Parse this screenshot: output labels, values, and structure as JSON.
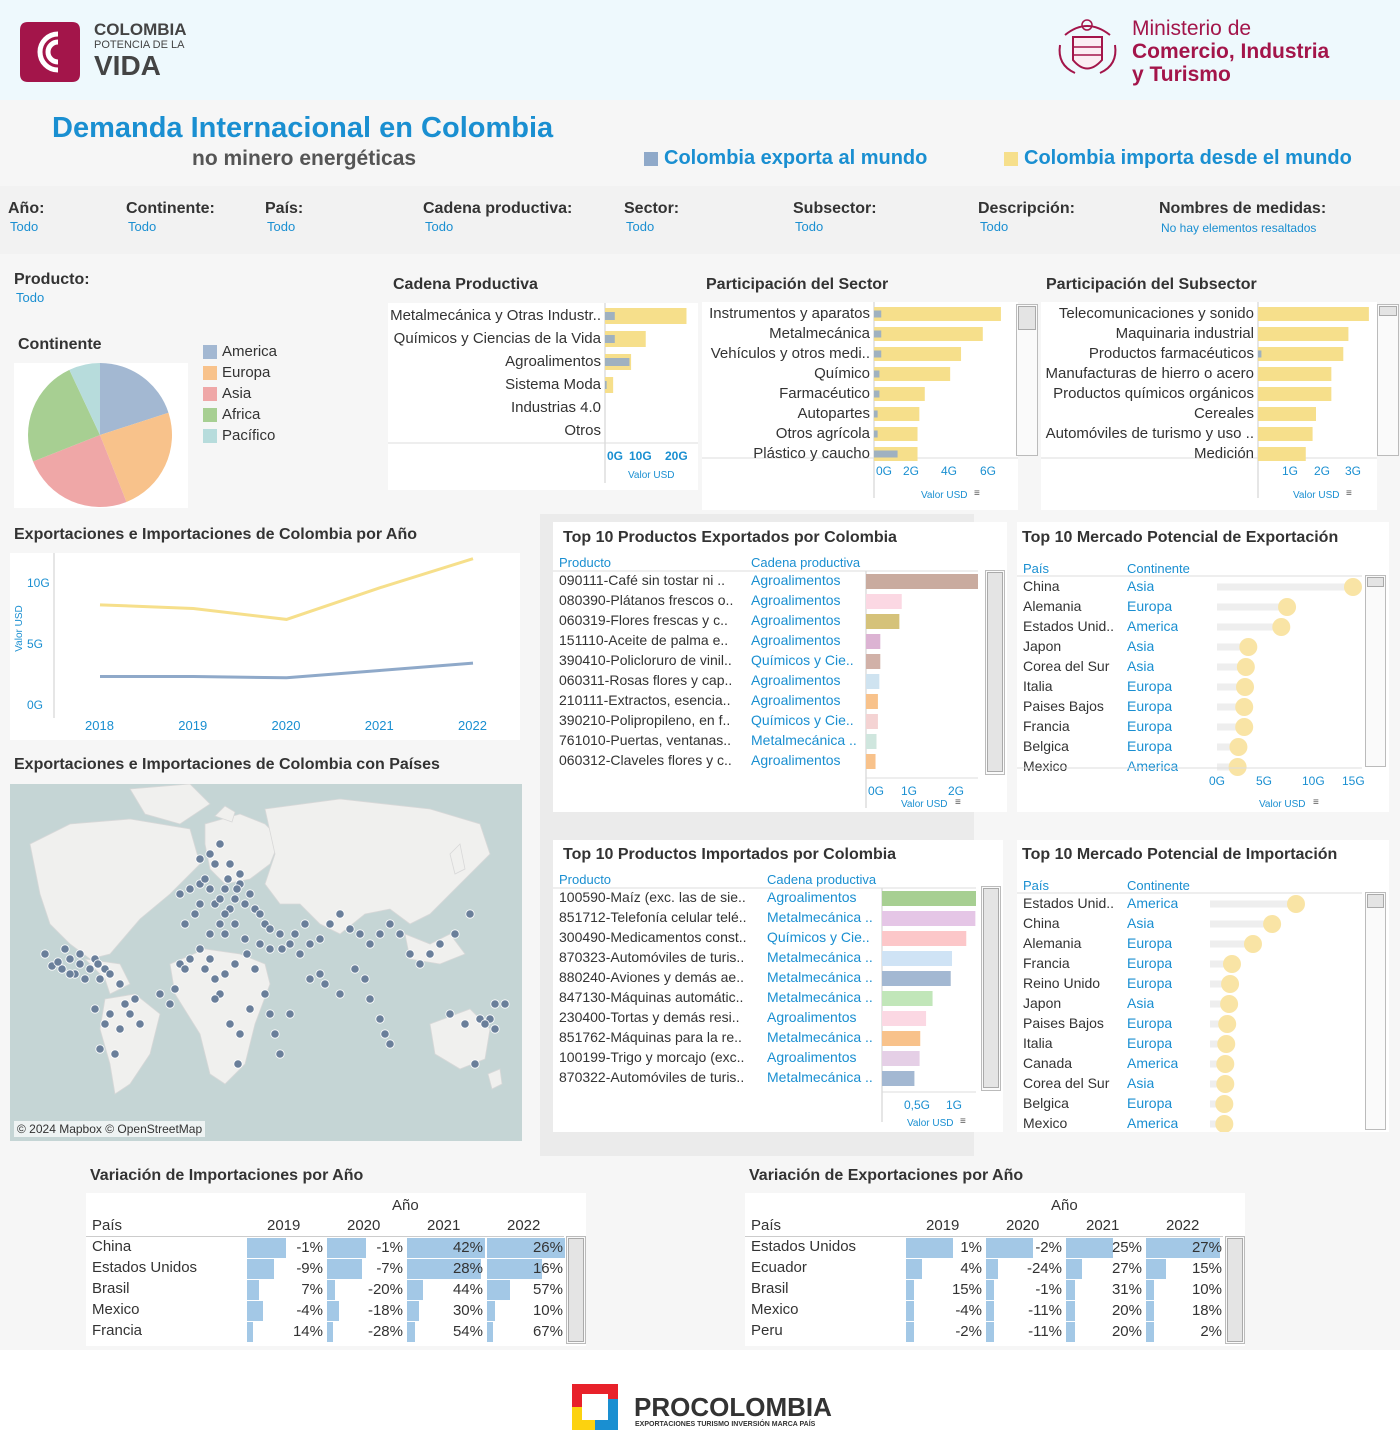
{
  "header": {
    "logo_left": {
      "line1": "COLOMBIA",
      "line2": "POTENCIA DE LA",
      "line3": "VIDA"
    },
    "logo_right": {
      "line1": "Ministerio de",
      "line2": "Comercio, Industria",
      "line3": "y Turismo"
    },
    "brand_color": "#a3154a"
  },
  "title": {
    "main": "Demanda Internacional en Colombia",
    "sub": "no minero energéticas",
    "legend_export": "Colombia exporta al mundo",
    "legend_import": "Colombia importa desde el mundo",
    "export_color": "#8fa9c9",
    "import_color": "#f6df8b"
  },
  "filters": [
    {
      "label": "Año:",
      "value": "Todo"
    },
    {
      "label": "Continente:",
      "value": "Todo"
    },
    {
      "label": "País:",
      "value": "Todo"
    },
    {
      "label": "Cadena productiva:",
      "value": "Todo"
    },
    {
      "label": "Sector:",
      "value": "Todo"
    },
    {
      "label": "Subsector:",
      "value": "Todo"
    },
    {
      "label": "Descripción:",
      "value": "Todo"
    },
    {
      "label": "Nombres de medidas:",
      "value": "No hay elementos resaltados"
    }
  ],
  "producto_filter": {
    "label": "Producto:",
    "value": "Todo"
  },
  "continent_pie": {
    "title": "Continente",
    "chart_data": {
      "type": "pie",
      "labels": [
        "America",
        "Europa",
        "Asia",
        "Africa",
        "Pacífico"
      ],
      "values": [
        20,
        24,
        25,
        24,
        7
      ],
      "colors": [
        "#a3b8d2",
        "#f8c28b",
        "#efa7a7",
        "#a7cf92",
        "#b7dcdc"
      ]
    }
  },
  "cadena": {
    "title": "Cadena Productiva",
    "axis_label": "Valor USD",
    "ticks": [
      "0G",
      "10G",
      "20G"
    ],
    "chart_data": {
      "type": "bar",
      "categories": [
        "Metalmecánica y Otras Industr..",
        "Químicos y Ciencias de la Vida",
        "Agroalimentos",
        "Sistema Moda",
        "Industrias 4.0",
        "Otros"
      ],
      "series": [
        {
          "name": "Colombia importa desde el mundo",
          "values": [
            25,
            12.5,
            8,
            2.5,
            0,
            0
          ]
        },
        {
          "name": "Colombia exporta al mundo",
          "values": [
            3,
            3,
            7.5,
            0.5,
            0,
            0
          ]
        }
      ],
      "xlim": [
        0,
        27
      ]
    }
  },
  "sector": {
    "title": "Participación  del Sector",
    "axis_label": "Valor USD",
    "ticks": [
      "0G",
      "2G",
      "4G",
      "6G"
    ],
    "chart_data": {
      "type": "bar",
      "categories": [
        "Instrumentos y aparatos",
        "Metalmecánica",
        "Vehículos y otros medi..",
        "Químico",
        "Farmacéutico",
        "Autopartes",
        "Otros agrícola",
        "Plástico y caucho"
      ],
      "series": [
        {
          "name": "Colombia importa desde el mundo",
          "values": [
            7.0,
            6.0,
            4.8,
            4.2,
            2.8,
            2.5,
            2.4,
            2.4
          ]
        },
        {
          "name": "Colombia exporta al mundo",
          "values": [
            0.4,
            0.4,
            0.4,
            0.3,
            0.3,
            0.2,
            0.2,
            1.3
          ]
        }
      ],
      "xlim": [
        0,
        7.5
      ]
    }
  },
  "subsector": {
    "title": "Participación  del Subsector",
    "axis_label": "Valor USD",
    "ticks": [
      "1G",
      "2G",
      "3G"
    ],
    "chart_data": {
      "type": "bar",
      "categories": [
        "Telecomunicaciones y sonido",
        "Maquinaria industrial",
        "Productos farmacéuticos",
        "Manufacturas de hierro o acero",
        "Productos químicos orgánicos",
        "Cereales",
        "Automóviles de turismo y uso ..",
        "Medición"
      ],
      "series": [
        {
          "name": "Colombia importa desde el mundo",
          "values": [
            3.45,
            2.85,
            2.7,
            2.35,
            2.35,
            1.9,
            1.8,
            1.6
          ]
        },
        {
          "name": "Colombia exporta al mundo",
          "values": [
            0.1,
            0.1,
            0.3,
            0.1,
            0.1,
            0.05,
            0.2,
            0.2
          ]
        }
      ],
      "xlim": [
        0.2,
        3.6
      ]
    }
  },
  "yearly": {
    "title": "Exportaciones e Importaciones de Colombia por Año",
    "ylabel": "Valor USD",
    "y_ticks": [
      "10G",
      "5G",
      "0G"
    ],
    "chart_data": {
      "type": "line",
      "x": [
        "2018",
        "2019",
        "2020",
        "2021",
        "2022"
      ],
      "series": [
        {
          "name": "Colombia importa desde el mundo",
          "values": [
            8.4,
            8.1,
            7.2,
            9.8,
            12.2
          ]
        },
        {
          "name": "Colombia exporta al mundo",
          "values": [
            2.5,
            2.5,
            2.4,
            3.0,
            3.6
          ]
        }
      ],
      "ylim": [
        -0.5,
        12.5
      ]
    }
  },
  "map": {
    "title": "Exportaciones e Importaciones de Colombia con Países",
    "attribution": "© 2024 Mapbox © OpenStreetMap"
  },
  "top_exp_products": {
    "title": "Top 10 Productos Exportados por Colombia",
    "col_producto": "Producto",
    "col_cadena": "Cadena productiva",
    "axis_label": "Valor USD",
    "ticks": [
      "0G",
      "1G",
      "2G"
    ],
    "rows": [
      {
        "producto": "090111-Café sin tostar ni ..",
        "cadena": "Agroalimentos",
        "value": 2.35,
        "color": "#c9ab9f"
      },
      {
        "producto": "080390-Plátanos frescos o..",
        "cadena": "Agroalimentos",
        "value": 0.75,
        "color": "#fbd8e3"
      },
      {
        "producto": "060319-Flores frescas y c..",
        "cadena": "Agroalimentos",
        "value": 0.7,
        "color": "#d5c27a"
      },
      {
        "producto": "151110-Aceite de palma e..",
        "cadena": "Agroalimentos",
        "value": 0.3,
        "color": "#dcb3d3"
      },
      {
        "producto": "390410-Policloruro de vinil..",
        "cadena": "Químicos y Cie..",
        "value": 0.3,
        "color": "#d1b1a8"
      },
      {
        "producto": "060311-Rosas flores y cap..",
        "cadena": "Agroalimentos",
        "value": 0.28,
        "color": "#cfe3f0"
      },
      {
        "producto": "210111-Extractos, esencia..",
        "cadena": "Agroalimentos",
        "value": 0.25,
        "color": "#f8c28b"
      },
      {
        "producto": "390210-Polipropileno, en f..",
        "cadena": "Químicos y Cie..",
        "value": 0.25,
        "color": "#f4d3d3"
      },
      {
        "producto": "761010-Puertas, ventanas..",
        "cadena": "Metalmecánica ..",
        "value": 0.22,
        "color": "#cfe6de"
      },
      {
        "producto": "060312-Claveles flores y c..",
        "cadena": "Agroalimentos",
        "value": 0.2,
        "color": "#f8c28b"
      }
    ]
  },
  "top_exp_markets": {
    "title": "Top 10 Mercado Potencial de Exportación",
    "col_pais": "País",
    "col_continente": "Continente",
    "axis_label": "Valor USD",
    "ticks": [
      "0G",
      "5G",
      "10G",
      "15G"
    ],
    "rows": [
      {
        "pais": "China",
        "continente": "Asia",
        "value": 16.5
      },
      {
        "pais": "Alemania",
        "continente": "Europa",
        "value": 8.5
      },
      {
        "pais": "Estados Unid..",
        "continente": "America",
        "value": 7.8
      },
      {
        "pais": "Japon",
        "continente": "Asia",
        "value": 3.8
      },
      {
        "pais": "Corea del Sur",
        "continente": "Asia",
        "value": 3.5
      },
      {
        "pais": "Italia",
        "continente": "Europa",
        "value": 3.4
      },
      {
        "pais": "Paises Bajos",
        "continente": "Europa",
        "value": 3.3
      },
      {
        "pais": "Francia",
        "continente": "Europa",
        "value": 3.3
      },
      {
        "pais": "Belgica",
        "continente": "Europa",
        "value": 2.6
      },
      {
        "pais": "Mexico",
        "continente": "America",
        "value": 2.5
      }
    ]
  },
  "top_imp_products": {
    "title": "Top 10 Productos Importados por Colombia",
    "col_producto": "Producto",
    "col_cadena": "Cadena productiva",
    "axis_label": "Valor USD",
    "ticks": [
      "0,5G",
      "1G"
    ],
    "rows": [
      {
        "producto": "100590-Maíz (exc. las de sie..",
        "cadena": "Agroalimentos",
        "value": 1.45,
        "color": "#a7cf92"
      },
      {
        "producto": "851712-Telefonía celular telé..",
        "cadena": "Metalmecánica ..",
        "value": 1.44,
        "color": "#e5c6e6"
      },
      {
        "producto": "300490-Medicamentos const..",
        "cadena": "Químicos y Cie..",
        "value": 1.3,
        "color": "#fcc7c9"
      },
      {
        "producto": "870323-Automóviles de turis..",
        "cadena": "Metalmecánica ..",
        "value": 1.08,
        "color": "#cfe3f5"
      },
      {
        "producto": "880240-Aviones y demás ae..",
        "cadena": "Metalmecánica ..",
        "value": 1.06,
        "color": "#a3b8d2"
      },
      {
        "producto": "847130-Máquinas automátic..",
        "cadena": "Metalmecánica ..",
        "value": 0.78,
        "color": "#c1e6b9"
      },
      {
        "producto": "230400-Tortas y demás resi..",
        "cadena": "Agroalimentos",
        "value": 0.68,
        "color": "#fbd8e3"
      },
      {
        "producto": "851762-Máquinas para la re..",
        "cadena": "Metalmecánica ..",
        "value": 0.59,
        "color": "#f8c28b"
      },
      {
        "producto": "100199-Trigo y morcajo (exc..",
        "cadena": "Agroalimentos",
        "value": 0.58,
        "color": "#e5cfe6"
      },
      {
        "producto": "870322-Automóviles de turis..",
        "cadena": "Metalmecánica ..",
        "value": 0.5,
        "color": "#a3b8d2"
      }
    ]
  },
  "top_imp_markets": {
    "title": "Top 10 Mercado Potencial de Importación",
    "col_pais": "País",
    "col_continente": "Continente",
    "rows": [
      {
        "pais": "Estados Unid..",
        "continente": "America",
        "value": 9.0
      },
      {
        "pais": "China",
        "continente": "Asia",
        "value": 6.5
      },
      {
        "pais": "Alemania",
        "continente": "Europa",
        "value": 4.5
      },
      {
        "pais": "Francia",
        "continente": "Europa",
        "value": 2.3
      },
      {
        "pais": "Reino Unido",
        "continente": "Europa",
        "value": 2.1
      },
      {
        "pais": "Japon",
        "continente": "Asia",
        "value": 2.0
      },
      {
        "pais": "Paises Bajos",
        "continente": "Europa",
        "value": 1.8
      },
      {
        "pais": "Italia",
        "continente": "Europa",
        "value": 1.7
      },
      {
        "pais": "Canada",
        "continente": "America",
        "value": 1.6
      },
      {
        "pais": "Corea del Sur",
        "continente": "Asia",
        "value": 1.6
      },
      {
        "pais": "Belgica",
        "continente": "Europa",
        "value": 1.5
      },
      {
        "pais": "Mexico",
        "continente": "America",
        "value": 1.5
      }
    ]
  },
  "var_imports": {
    "title": "Variación de Importaciones por Año",
    "col_pais": "País",
    "col_anio": "Año",
    "years": [
      "2019",
      "2020",
      "2021",
      "2022"
    ],
    "rows": [
      {
        "pais": "China",
        "values": [
          "-1%",
          "-1%",
          "42%",
          "26%"
        ],
        "bars": [
          0.5,
          0.5,
          1.0,
          1.0
        ]
      },
      {
        "pais": "Estados Unidos",
        "values": [
          "-9%",
          "-7%",
          "28%",
          "16%"
        ],
        "bars": [
          0.35,
          0.45,
          0.95,
          0.7
        ]
      },
      {
        "pais": "Brasil",
        "values": [
          "7%",
          "-20%",
          "44%",
          "57%"
        ],
        "bars": [
          0.15,
          0.1,
          0.2,
          0.3
        ]
      },
      {
        "pais": "Mexico",
        "values": [
          "-4%",
          "-18%",
          "30%",
          "10%"
        ],
        "bars": [
          0.2,
          0.15,
          0.15,
          0.1
        ]
      },
      {
        "pais": "Francia",
        "values": [
          "14%",
          "-28%",
          "54%",
          "67%"
        ],
        "bars": [
          0.08,
          0.08,
          0.1,
          0.08
        ]
      }
    ]
  },
  "var_exports": {
    "title": "Variación de Exportaciones por Año",
    "col_pais": "País",
    "col_anio": "Año",
    "years": [
      "2019",
      "2020",
      "2021",
      "2022"
    ],
    "rows": [
      {
        "pais": "Estados Unidos",
        "values": [
          "1%",
          "-2%",
          "25%",
          "27%"
        ],
        "bars": [
          0.6,
          0.6,
          0.6,
          0.95
        ]
      },
      {
        "pais": "Ecuador",
        "values": [
          "4%",
          "-24%",
          "27%",
          "15%"
        ],
        "bars": [
          0.2,
          0.15,
          0.2,
          0.25
        ]
      },
      {
        "pais": "Brasil",
        "values": [
          "15%",
          "-1%",
          "31%",
          "10%"
        ],
        "bars": [
          0.1,
          0.1,
          0.12,
          0.1
        ]
      },
      {
        "pais": "Mexico",
        "values": [
          "-4%",
          "-11%",
          "20%",
          "18%"
        ],
        "bars": [
          0.1,
          0.1,
          0.12,
          0.1
        ]
      },
      {
        "pais": "Peru",
        "values": [
          "-2%",
          "-11%",
          "20%",
          "2%"
        ],
        "bars": [
          0.1,
          0.1,
          0.12,
          0.1
        ]
      }
    ]
  },
  "footer": {
    "brand": "PROCOLOMBIA",
    "tagline": "EXPORTACIONES TURISMO INVERSIÓN MARCA PAÍS"
  }
}
